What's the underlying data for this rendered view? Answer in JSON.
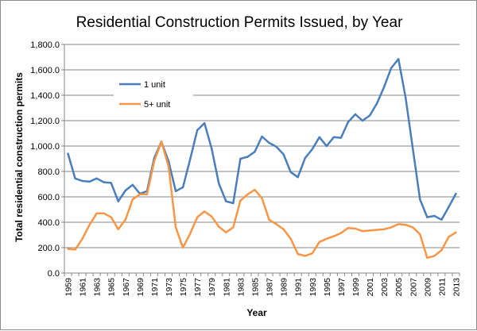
{
  "chart_data": {
    "type": "line",
    "title": "Residential Construction Permits Issued, by Year",
    "xlabel": "Year",
    "ylabel": "Total residential construction permits",
    "ylim": [
      0,
      1800
    ],
    "ytick_step": 200,
    "ytick_labels": [
      "0.0",
      "200.0",
      "400.0",
      "600.0",
      "800.0",
      "1,000.0",
      "1,200.0",
      "1,400.0",
      "1,600.0",
      "1,800.0"
    ],
    "x": [
      1959,
      1960,
      1961,
      1962,
      1963,
      1964,
      1965,
      1966,
      1967,
      1968,
      1969,
      1970,
      1971,
      1972,
      1973,
      1974,
      1975,
      1976,
      1977,
      1978,
      1979,
      1980,
      1981,
      1982,
      1983,
      1984,
      1985,
      1986,
      1987,
      1988,
      1989,
      1990,
      1991,
      1992,
      1993,
      1994,
      1995,
      1996,
      1997,
      1998,
      1999,
      2000,
      2001,
      2002,
      2003,
      2004,
      2005,
      2006,
      2007,
      2008,
      2009,
      2010,
      2011,
      2012,
      2013
    ],
    "xtick_labels": [
      "1959",
      "1961",
      "1963",
      "1965",
      "1967",
      "1969",
      "1971",
      "1973",
      "1975",
      "1977",
      "1979",
      "1981",
      "1983",
      "1985",
      "1987",
      "1989",
      "1991",
      "1993",
      "1995",
      "1997",
      "1999",
      "2001",
      "2003",
      "2005",
      "2007",
      "2009",
      "2011",
      "2013"
    ],
    "legend_position": "upper-left",
    "grid": "horizontal",
    "series": [
      {
        "name": "1 unit",
        "color": "#4a7ebb",
        "values": [
          940,
          745,
          725,
          720,
          745,
          715,
          710,
          565,
          650,
          695,
          625,
          645,
          905,
          1035,
          880,
          645,
          675,
          895,
          1125,
          1180,
          980,
          705,
          565,
          550,
          900,
          915,
          955,
          1075,
          1025,
          995,
          935,
          795,
          755,
          905,
          975,
          1070,
          1000,
          1070,
          1065,
          1190,
          1250,
          1200,
          1240,
          1335,
          1465,
          1615,
          1685,
          1380,
          980,
          580,
          440,
          450,
          420,
          520,
          625
        ]
      },
      {
        "name": "5+ unit",
        "color": "#f79646",
        "values": [
          190,
          185,
          270,
          380,
          470,
          470,
          440,
          345,
          420,
          580,
          620,
          620,
          880,
          1035,
          840,
          360,
          200,
          310,
          440,
          485,
          445,
          365,
          320,
          360,
          570,
          620,
          655,
          590,
          420,
          385,
          345,
          270,
          150,
          135,
          155,
          245,
          270,
          290,
          315,
          355,
          350,
          330,
          335,
          340,
          345,
          360,
          385,
          380,
          360,
          305,
          120,
          135,
          180,
          285,
          320
        ]
      }
    ]
  }
}
